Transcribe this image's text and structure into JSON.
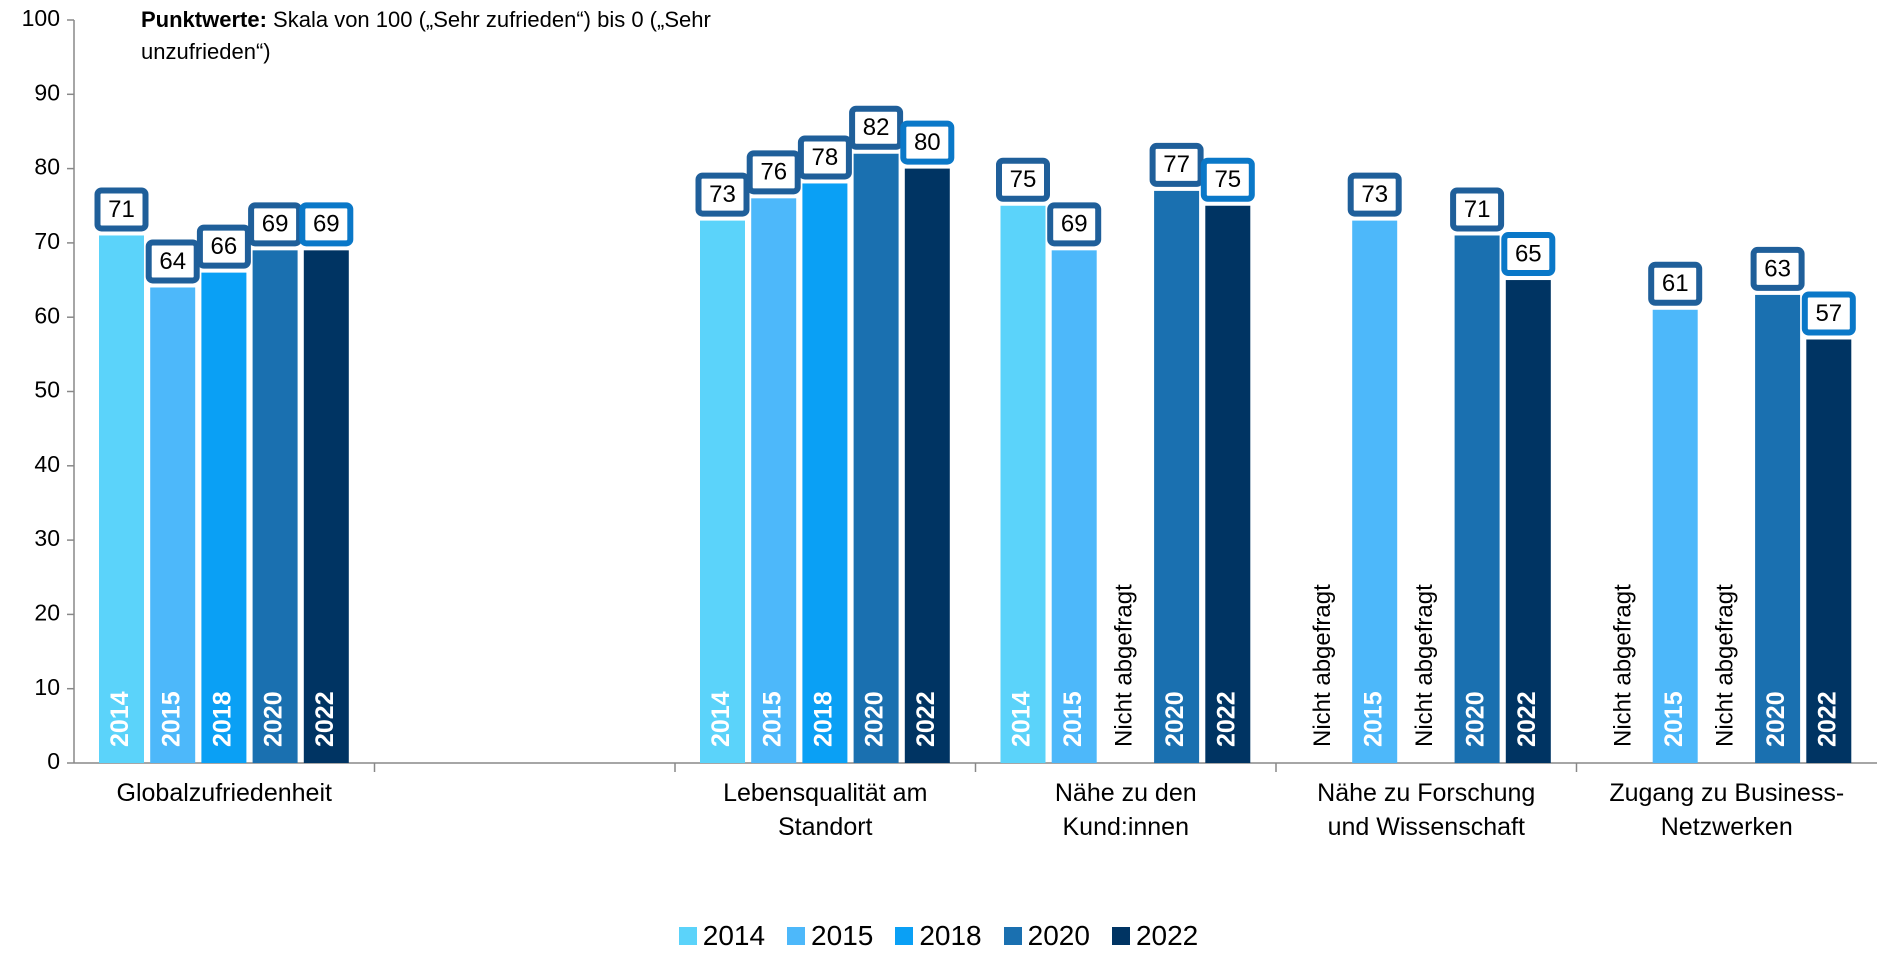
{
  "chart_data": {
    "type": "bar",
    "title_bold": "Punktwerte:",
    "title": "Skala von 100 („Sehr zufrieden“) bis 0 („Sehr unzufrieden“)",
    "missing_label": "Nicht abgefragt",
    "categories": [
      "Globalzufriedenheit",
      null,
      "Lebensqualität am Standort",
      "Nähe zu den Kund:innen",
      "Nähe zu Forschung und Wissenschaft",
      "Zugang zu Business-Netzwerken"
    ],
    "series": [
      {
        "name": "2014",
        "color": "#5bd3fa",
        "values": [
          71,
          null,
          73,
          75,
          null,
          null
        ]
      },
      {
        "name": "2015",
        "color": "#4db8fa",
        "values": [
          64,
          null,
          76,
          69,
          73,
          61
        ]
      },
      {
        "name": "2018",
        "color": "#0aa0f5",
        "values": [
          66,
          null,
          78,
          null,
          null,
          null
        ]
      },
      {
        "name": "2020",
        "color": "#1a70b0",
        "values": [
          69,
          null,
          82,
          77,
          71,
          63
        ]
      },
      {
        "name": "2022",
        "color": "#003463",
        "values": [
          69,
          null,
          80,
          75,
          65,
          57
        ]
      }
    ],
    "ylim": [
      0,
      100
    ],
    "yticks": [
      0,
      10,
      20,
      30,
      40,
      50,
      60,
      70,
      80,
      90,
      100
    ],
    "legend": "bottom"
  }
}
